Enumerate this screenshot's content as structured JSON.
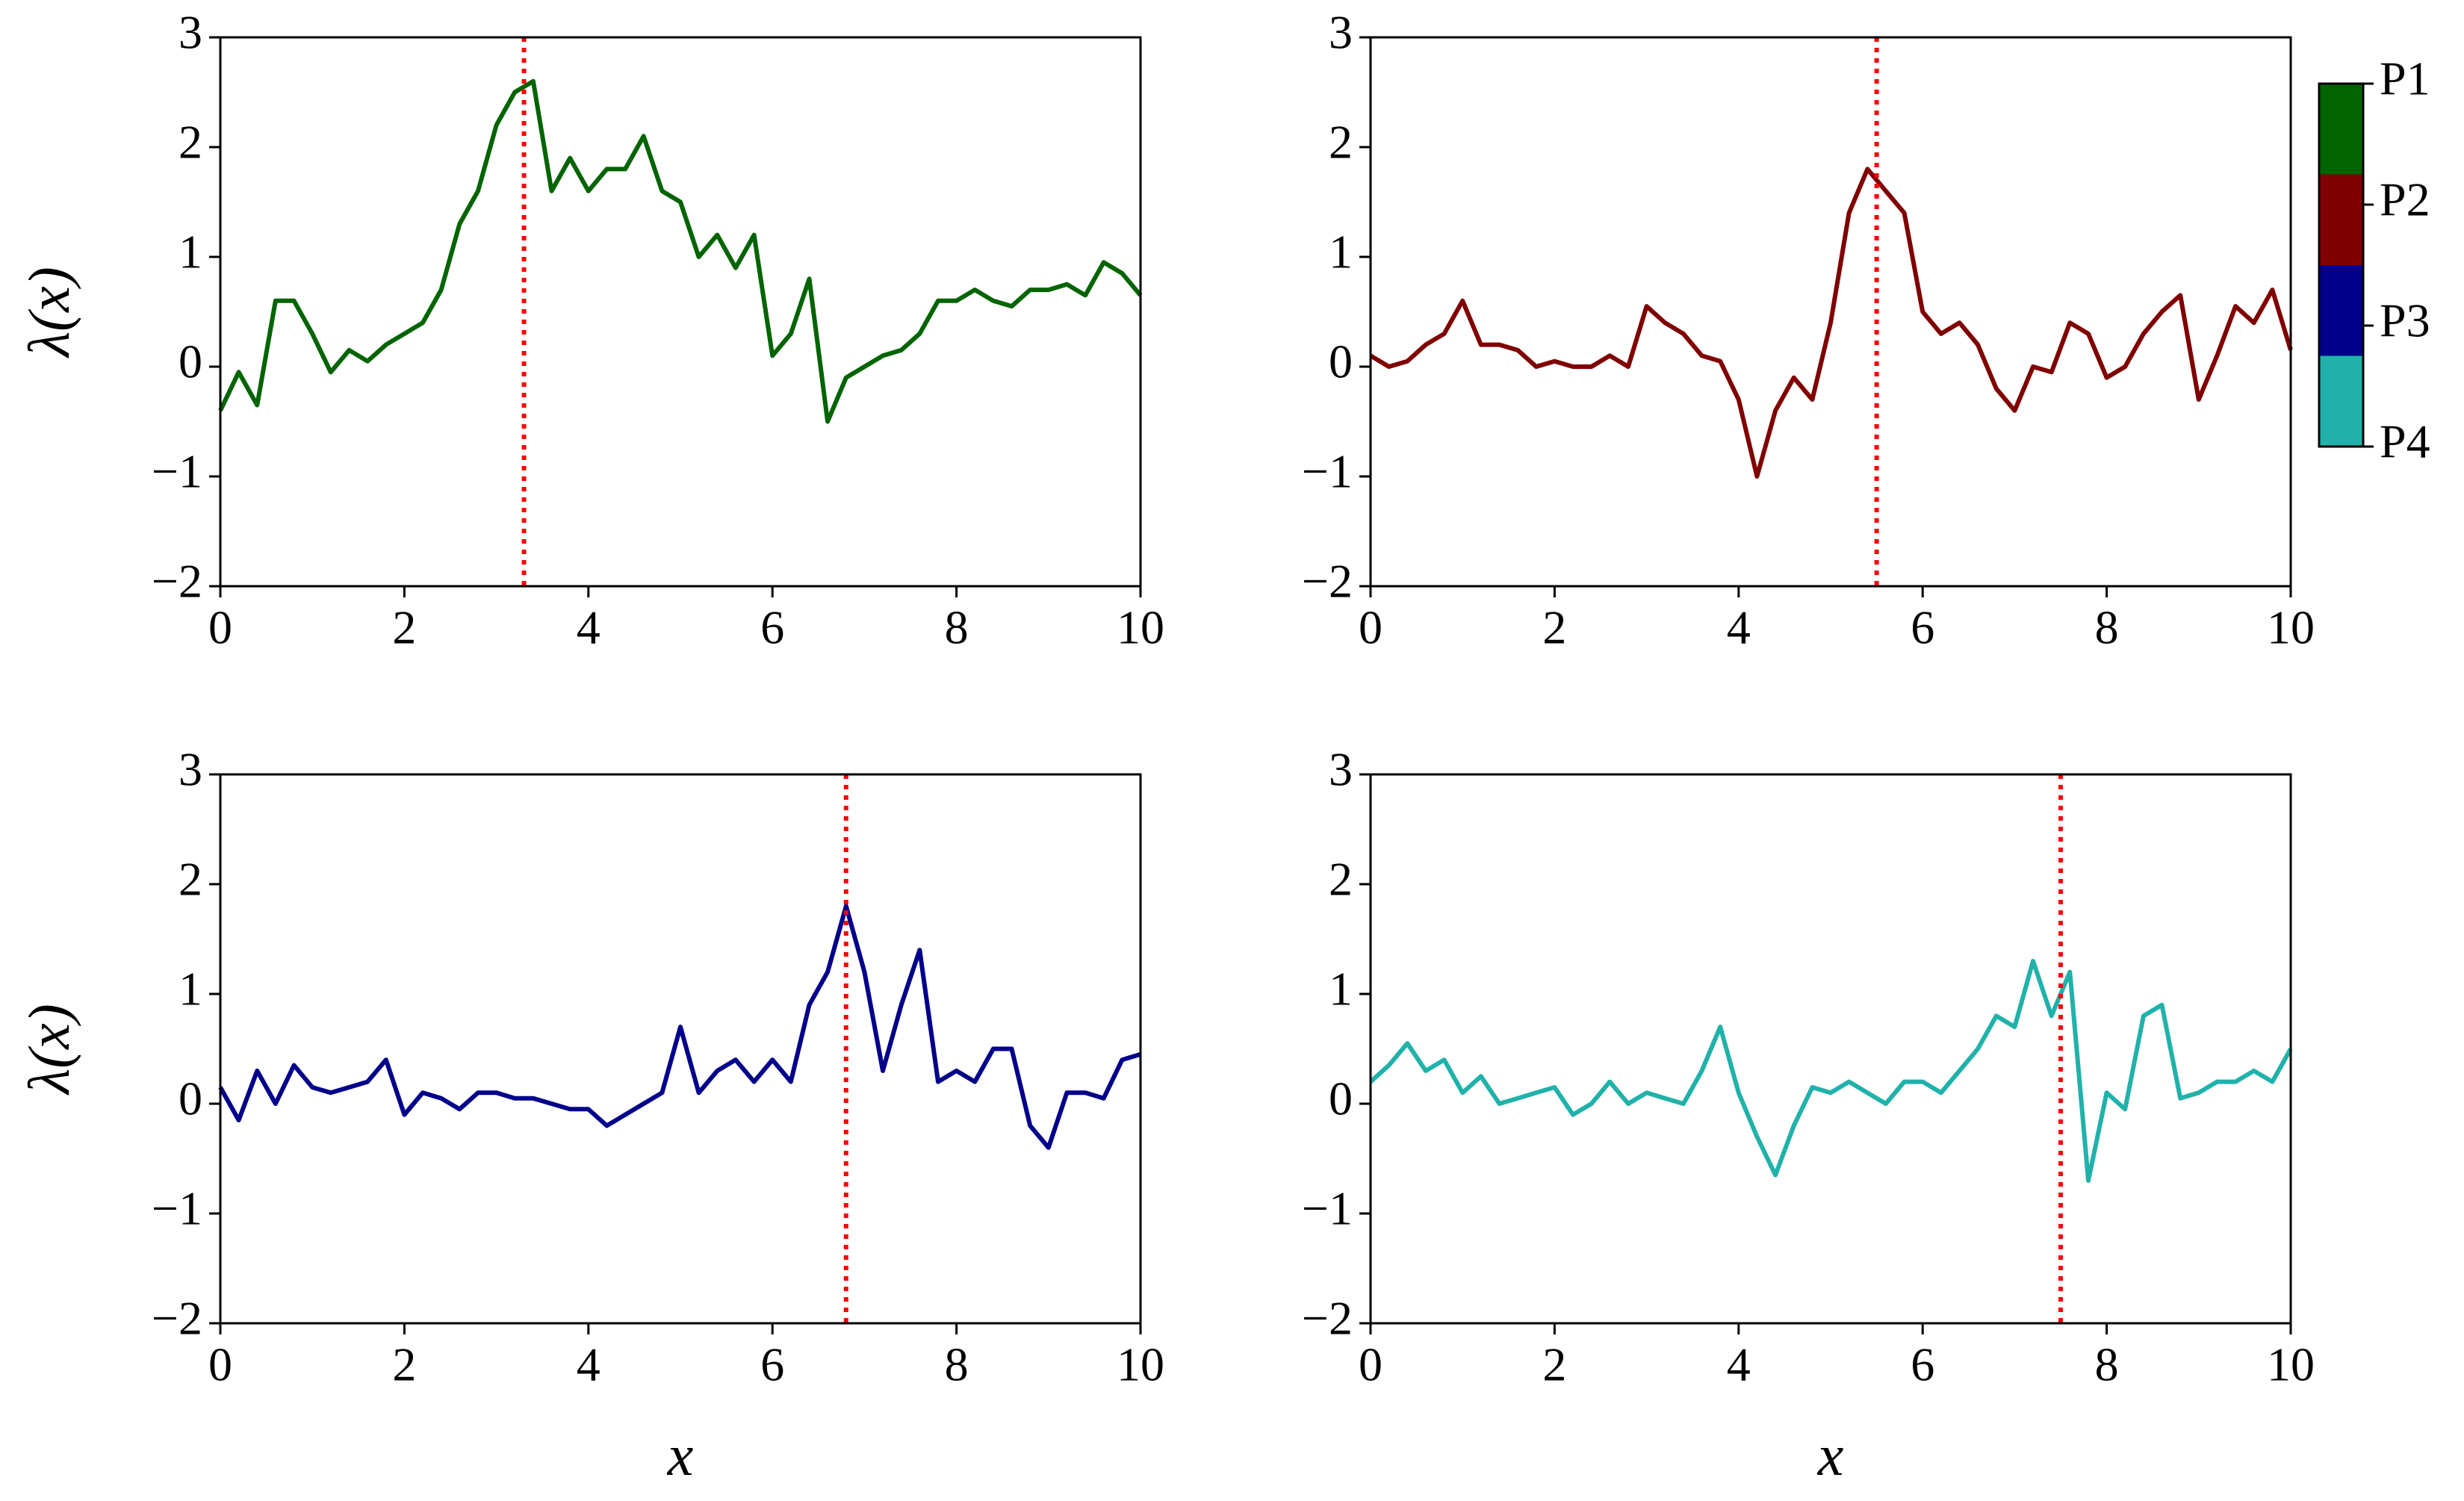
{
  "chart_data": [
    {
      "type": "line",
      "ylabel": "λ(x)",
      "x": [
        0,
        0.2,
        0.4,
        0.6,
        0.8,
        1.0,
        1.2,
        1.4,
        1.6,
        1.8,
        2.0,
        2.2,
        2.4,
        2.6,
        2.8,
        3.0,
        3.2,
        3.4,
        3.6,
        3.8,
        4.0,
        4.2,
        4.4,
        4.6,
        4.8,
        5.0,
        5.2,
        5.4,
        5.6,
        5.8,
        6.0,
        6.2,
        6.4,
        6.6,
        6.8,
        7.0,
        7.2,
        7.4,
        7.6,
        7.8,
        8.0,
        8.2,
        8.4,
        8.6,
        8.8,
        9.0,
        9.2,
        9.4,
        9.6,
        9.8,
        10.0
      ],
      "series": [
        {
          "name": "P1",
          "color": "#006400",
          "values": [
            -0.4,
            -0.05,
            -0.35,
            0.6,
            0.6,
            0.3,
            -0.05,
            0.15,
            0.05,
            0.2,
            0.3,
            0.4,
            0.7,
            1.3,
            1.6,
            2.2,
            2.5,
            2.6,
            1.6,
            1.9,
            1.6,
            1.8,
            1.8,
            2.1,
            1.6,
            1.5,
            1.0,
            1.2,
            0.9,
            1.2,
            0.1,
            0.3,
            0.8,
            -0.5,
            -0.1,
            0.0,
            0.1,
            0.15,
            0.3,
            0.6,
            0.6,
            0.7,
            0.6,
            0.55,
            0.7,
            0.7,
            0.75,
            0.65,
            0.95,
            0.85,
            0.65
          ]
        }
      ],
      "vline": 3.3,
      "vline_color": "#ff0000",
      "xlim": [
        0,
        10
      ],
      "ylim": [
        -2,
        3
      ],
      "xticks": [
        0,
        2,
        4,
        6,
        8,
        10
      ],
      "yticks": [
        {
          "value": -2,
          "label": "−2"
        },
        {
          "value": -1,
          "label": "−1"
        },
        0,
        1,
        2,
        3
      ]
    },
    {
      "type": "line",
      "x": [
        0,
        0.2,
        0.4,
        0.6,
        0.8,
        1.0,
        1.2,
        1.4,
        1.6,
        1.8,
        2.0,
        2.2,
        2.4,
        2.6,
        2.8,
        3.0,
        3.2,
        3.4,
        3.6,
        3.8,
        4.0,
        4.2,
        4.4,
        4.6,
        4.8,
        5.0,
        5.2,
        5.4,
        5.6,
        5.8,
        6.0,
        6.2,
        6.4,
        6.6,
        6.8,
        7.0,
        7.2,
        7.4,
        7.6,
        7.8,
        8.0,
        8.2,
        8.4,
        8.6,
        8.8,
        9.0,
        9.2,
        9.4,
        9.6,
        9.8,
        10.0
      ],
      "series": [
        {
          "name": "P2",
          "color": "#800000",
          "values": [
            0.1,
            0.0,
            0.05,
            0.2,
            0.3,
            0.6,
            0.2,
            0.2,
            0.15,
            0.0,
            0.05,
            0.0,
            0.0,
            0.1,
            0.0,
            0.55,
            0.4,
            0.3,
            0.1,
            0.05,
            -0.3,
            -1.0,
            -0.4,
            -0.1,
            -0.3,
            0.4,
            1.4,
            1.8,
            1.6,
            1.4,
            0.5,
            0.3,
            0.4,
            0.2,
            -0.2,
            -0.4,
            0.0,
            -0.05,
            0.4,
            0.3,
            -0.1,
            0.0,
            0.3,
            0.5,
            0.65,
            -0.3,
            0.1,
            0.55,
            0.4,
            0.7,
            0.15
          ]
        }
      ],
      "vline": 5.5,
      "vline_color": "#ff0000",
      "xlim": [
        0,
        10
      ],
      "ylim": [
        -2,
        3
      ],
      "xticks": [
        0,
        2,
        4,
        6,
        8,
        10
      ],
      "yticks": [
        {
          "value": -2,
          "label": "−2"
        },
        {
          "value": -1,
          "label": "−1"
        },
        0,
        1,
        2,
        3
      ]
    },
    {
      "type": "line",
      "ylabel": "λ(x)",
      "xlabel": "x",
      "x": [
        0,
        0.2,
        0.4,
        0.6,
        0.8,
        1.0,
        1.2,
        1.4,
        1.6,
        1.8,
        2.0,
        2.2,
        2.4,
        2.6,
        2.8,
        3.0,
        3.2,
        3.4,
        3.6,
        3.8,
        4.0,
        4.2,
        4.4,
        4.6,
        4.8,
        5.0,
        5.2,
        5.4,
        5.6,
        5.8,
        6.0,
        6.2,
        6.4,
        6.6,
        6.8,
        7.0,
        7.2,
        7.4,
        7.6,
        7.8,
        8.0,
        8.2,
        8.4,
        8.6,
        8.8,
        9.0,
        9.2,
        9.4,
        9.6,
        9.8,
        10.0
      ],
      "series": [
        {
          "name": "P3",
          "color": "#00008b",
          "values": [
            0.15,
            -0.15,
            0.3,
            0.0,
            0.35,
            0.15,
            0.1,
            0.15,
            0.2,
            0.4,
            -0.1,
            0.1,
            0.05,
            -0.05,
            0.1,
            0.1,
            0.05,
            0.05,
            0.0,
            -0.05,
            -0.05,
            -0.2,
            -0.1,
            0.0,
            0.1,
            0.7,
            0.1,
            0.3,
            0.4,
            0.2,
            0.4,
            0.2,
            0.9,
            1.2,
            1.8,
            1.2,
            0.3,
            0.9,
            1.4,
            0.2,
            0.3,
            0.2,
            0.5,
            0.5,
            -0.2,
            -0.4,
            0.1,
            0.1,
            0.05,
            0.4,
            0.45
          ]
        }
      ],
      "vline": 6.8,
      "vline_color": "#ff0000",
      "xlim": [
        0,
        10
      ],
      "ylim": [
        -2,
        3
      ],
      "xticks": [
        0,
        2,
        4,
        6,
        8,
        10
      ],
      "yticks": [
        {
          "value": -2,
          "label": "−2"
        },
        {
          "value": -1,
          "label": "−1"
        },
        0,
        1,
        2,
        3
      ]
    },
    {
      "type": "line",
      "xlabel": "x",
      "x": [
        0,
        0.2,
        0.4,
        0.6,
        0.8,
        1.0,
        1.2,
        1.4,
        1.6,
        1.8,
        2.0,
        2.2,
        2.4,
        2.6,
        2.8,
        3.0,
        3.2,
        3.4,
        3.6,
        3.8,
        4.0,
        4.2,
        4.4,
        4.6,
        4.8,
        5.0,
        5.2,
        5.4,
        5.6,
        5.8,
        6.0,
        6.2,
        6.4,
        6.6,
        6.8,
        7.0,
        7.2,
        7.4,
        7.6,
        7.8,
        8.0,
        8.2,
        8.4,
        8.6,
        8.8,
        9.0,
        9.2,
        9.4,
        9.6,
        9.8,
        10.0
      ],
      "series": [
        {
          "name": "P4",
          "color": "#20b2aa",
          "values": [
            0.2,
            0.35,
            0.55,
            0.3,
            0.4,
            0.1,
            0.25,
            0.0,
            0.05,
            0.1,
            0.15,
            -0.1,
            0.0,
            0.2,
            0.0,
            0.1,
            0.05,
            0.0,
            0.3,
            0.7,
            0.1,
            -0.3,
            -0.65,
            -0.2,
            0.15,
            0.1,
            0.2,
            0.1,
            0.0,
            0.2,
            0.2,
            0.1,
            0.3,
            0.5,
            0.8,
            0.7,
            1.3,
            0.8,
            1.2,
            -0.7,
            0.1,
            -0.05,
            0.8,
            0.9,
            0.05,
            0.1,
            0.2,
            0.2,
            0.3,
            0.2,
            0.5
          ]
        }
      ],
      "vline": 7.5,
      "vline_color": "#ff0000",
      "xlim": [
        0,
        10
      ],
      "ylim": [
        -2,
        3
      ],
      "xticks": [
        0,
        2,
        4,
        6,
        8,
        10
      ],
      "yticks": [
        {
          "value": -2,
          "label": "−2"
        },
        {
          "value": -1,
          "label": "−1"
        },
        0,
        1,
        2,
        3
      ]
    }
  ]
}
